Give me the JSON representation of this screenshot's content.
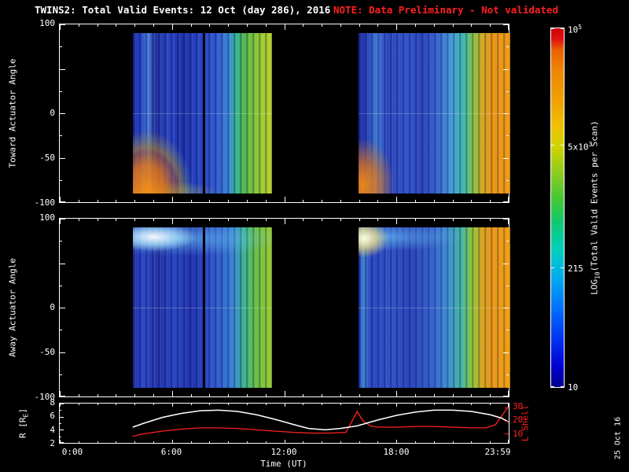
{
  "header": {
    "title": "TWINS2: Total Valid Events: 12 Oct (day 286), 2016",
    "note": "NOTE: Data Preliminary - Not validated",
    "datestamp": "25 Oct 16"
  },
  "colors": {
    "background": "#000000",
    "foreground": "#ffffff",
    "alert_red": "#ff2020",
    "r_line": "#ffffff",
    "l_shell_line": "#ff2020"
  },
  "axes": {
    "x": {
      "title": "Time (UT)",
      "ticks": [
        {
          "label": "0:00",
          "hour": 0
        },
        {
          "label": "6:00",
          "hour": 6
        },
        {
          "label": "12:00",
          "hour": 12
        },
        {
          "label": "18:00",
          "hour": 18
        },
        {
          "label": "23:59",
          "hour": 23.983
        }
      ]
    },
    "toward": {
      "title": "Toward Actuator Angle",
      "tick_labels": [
        {
          "label": "100",
          "value": 100
        },
        {
          "label": "0",
          "value": 0
        },
        {
          "label": "-50",
          "value": -50
        },
        {
          "label": "-100",
          "value": -100
        }
      ]
    },
    "away": {
      "title": "Away Actuator Angle",
      "tick_labels": [
        {
          "label": "100",
          "value": 100
        },
        {
          "label": "0",
          "value": 0
        },
        {
          "label": "-50",
          "value": -50
        },
        {
          "label": "-100",
          "value": -100
        }
      ]
    },
    "r": {
      "title_prefix": "R [R",
      "title_sub": "E",
      "title_suffix": "]",
      "tick_labels": [
        {
          "label": "8",
          "value": 8
        },
        {
          "label": "6",
          "value": 6
        },
        {
          "label": "4",
          "value": 4
        },
        {
          "label": "2",
          "value": 2
        }
      ]
    },
    "l": {
      "title": "L Shell",
      "tick_labels": [
        {
          "label": "30",
          "value": 30
        },
        {
          "label": "20",
          "value": 20
        },
        {
          "label": "10",
          "value": 10
        }
      ]
    }
  },
  "colorbar": {
    "title_base": "LOG",
    "title_sub": "10",
    "title_rest": "(Total Valid Events per Scan)",
    "scale": "log10",
    "range": [
      10,
      100000
    ],
    "ticks": [
      {
        "base": "10",
        "sup": "5",
        "value": 100000
      },
      {
        "base": "5x10",
        "sup": "3",
        "value": 5000
      },
      {
        "base": "215",
        "sup": "",
        "value": 215
      },
      {
        "base": "10",
        "sup": "",
        "value": 10
      }
    ]
  },
  "chart_data": [
    {
      "type": "heatmap",
      "title": "TWINS2: Total Valid Events: 12 Oct (day 286), 2016",
      "xlabel": "Time (UT)",
      "x_range_hours": [
        0,
        24
      ],
      "x_tick_hours": [
        0,
        6,
        12,
        18,
        23.983
      ],
      "panels": [
        {
          "name": "toward",
          "ylabel": "Toward Actuator Angle",
          "ylim": [
            -100,
            100
          ],
          "y_ticks_major": [
            100,
            50,
            0,
            -50,
            -100
          ],
          "data_angle_extent": [
            -90,
            90
          ]
        },
        {
          "name": "away",
          "ylabel": "Away Actuator Angle",
          "ylim": [
            -100,
            100
          ],
          "y_ticks_major": [
            100,
            50,
            0,
            -50,
            -100
          ],
          "data_angle_extent": [
            -90,
            90
          ]
        }
      ],
      "data_intervals_hours": [
        [
          3.9,
          11.3
        ],
        [
          15.9,
          23.983
        ]
      ],
      "gap_line_hour": 7.67,
      "colorbar": {
        "label": "LOG10(Total Valid Events per Scan)",
        "scale": "log10",
        "range": [
          10,
          100000
        ],
        "tick_values": [
          100000,
          5000,
          215,
          10
        ]
      },
      "colormap_stops_bottom_to_top": [
        "#000088",
        "#0030f0",
        "#0070ff",
        "#00d0c0",
        "#40c838",
        "#d0d400",
        "#f0a000",
        "#ea6000",
        "#cc0000"
      ],
      "features": [
        "no data 00:00-03:55 and ~11:20-15:55 (black gaps)",
        "toward: orange high-count patch at angles -60..-90 near 04:00-05:30",
        "toward: orange high-count patch at angles -60..-90 near 16:00-16:30",
        "both panels: counts rise through green/yellow to orange after ~22:00",
        "away: bright white/cyan band at angles +70..+90 from ~04:30-08:00 and near 16:00",
        "vertical black data-gap line near 07:40",
        "blue body with vertical striations throughout data intervals"
      ]
    },
    {
      "type": "line",
      "x_range_hours": [
        0,
        24
      ],
      "y_left": {
        "label": "R [RE]",
        "lim": [
          2,
          8
        ],
        "ticks": [
          2,
          4,
          6,
          8
        ]
      },
      "y_right": {
        "label": "L Shell",
        "lim": [
          3,
          33
        ],
        "ticks": [
          10,
          20,
          30
        ]
      },
      "series": [
        {
          "name": "R [RE]",
          "axis": "left",
          "color": "#ffffff",
          "points": [
            [
              3.9,
              4.4
            ],
            [
              4.5,
              5.0
            ],
            [
              5.5,
              5.9
            ],
            [
              6.5,
              6.5
            ],
            [
              7.5,
              6.9
            ],
            [
              8.5,
              7.0
            ],
            [
              9.5,
              6.8
            ],
            [
              10.5,
              6.3
            ],
            [
              11.5,
              5.6
            ],
            [
              12.5,
              4.8
            ],
            [
              13.3,
              4.2
            ],
            [
              14.2,
              4.0
            ],
            [
              15.0,
              4.2
            ],
            [
              15.9,
              4.6
            ],
            [
              17.0,
              5.5
            ],
            [
              18.0,
              6.2
            ],
            [
              19.0,
              6.7
            ],
            [
              20.0,
              7.0
            ],
            [
              21.0,
              7.0
            ],
            [
              22.0,
              6.8
            ],
            [
              23.0,
              6.3
            ],
            [
              23.6,
              5.8
            ],
            [
              24.0,
              5.2
            ]
          ]
        },
        {
          "name": "L Shell",
          "axis": "right",
          "color": "#ff2020",
          "points": [
            [
              3.9,
              8
            ],
            [
              4.5,
              10
            ],
            [
              5.5,
              12
            ],
            [
              6.5,
              13.5
            ],
            [
              7.5,
              14.5
            ],
            [
              8.5,
              14.5
            ],
            [
              9.5,
              14
            ],
            [
              10.5,
              13
            ],
            [
              11.5,
              12
            ],
            [
              12.5,
              11
            ],
            [
              13.5,
              10.5
            ],
            [
              14.5,
              10.5
            ],
            [
              15.3,
              11
            ],
            [
              15.9,
              27
            ],
            [
              16.2,
              20
            ],
            [
              16.6,
              16
            ],
            [
              17.0,
              15
            ],
            [
              18.0,
              15
            ],
            [
              19.0,
              15.5
            ],
            [
              20.0,
              15.5
            ],
            [
              21.0,
              15
            ],
            [
              22.0,
              14.5
            ],
            [
              22.8,
              14.5
            ],
            [
              23.3,
              17
            ],
            [
              23.7,
              25
            ],
            [
              24.0,
              31
            ]
          ]
        }
      ]
    }
  ]
}
